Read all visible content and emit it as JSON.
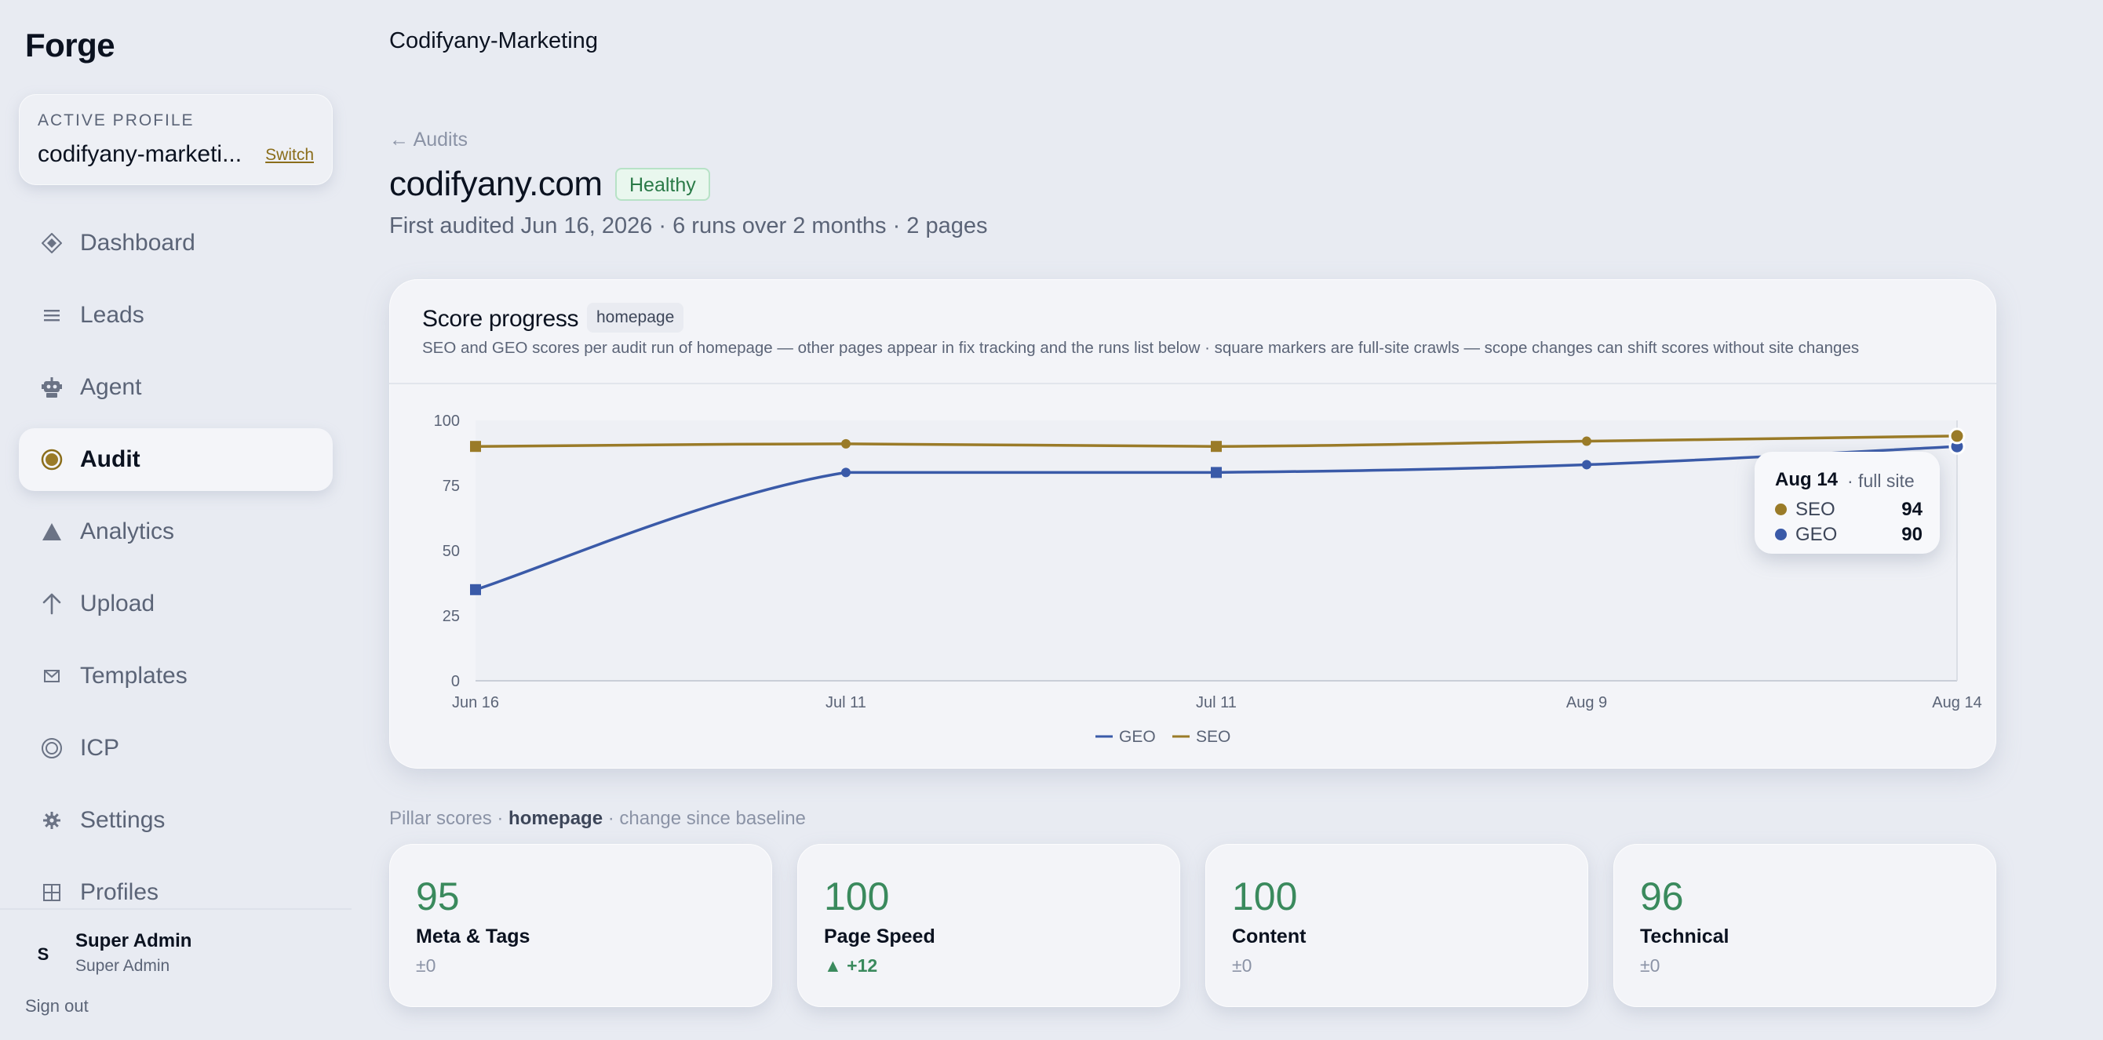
{
  "sidebar": {
    "brand": "Forge",
    "profile": {
      "label": "ACTIVE PROFILE",
      "name": "codifyany-marketi...",
      "switch_label": "Switch"
    },
    "items": [
      {
        "label": "Dashboard",
        "icon": "diamond-icon"
      },
      {
        "label": "Leads",
        "icon": "list-icon"
      },
      {
        "label": "Agent",
        "icon": "robot-icon"
      },
      {
        "label": "Audit",
        "icon": "target-icon",
        "active": true
      },
      {
        "label": "Analytics",
        "icon": "triangle-icon"
      },
      {
        "label": "Upload",
        "icon": "arrow-up-icon"
      },
      {
        "label": "Templates",
        "icon": "envelope-icon"
      },
      {
        "label": "ICP",
        "icon": "ring-icon"
      },
      {
        "label": "Settings",
        "icon": "gear-icon"
      },
      {
        "label": "Profiles",
        "icon": "grid-icon"
      }
    ],
    "user": {
      "initial": "S",
      "name": "Super Admin",
      "role": "Super Admin"
    },
    "sign_out": "Sign out"
  },
  "header": {
    "workspace": "Codifyany-Marketing"
  },
  "breadcrumb": {
    "back": "← Audits"
  },
  "site": {
    "domain": "codifyany.com",
    "status": "Healthy",
    "meta": "First audited Jun 16, 2026 · 6 runs over 2 months · 2 pages"
  },
  "score_card": {
    "title": "Score progress",
    "scope": "homepage",
    "subtitle": "SEO and GEO scores per audit run of homepage — other pages appear in fix tracking and the runs list below · square markers are full-site crawls — scope changes can shift scores without site changes",
    "tooltip": {
      "date": "Aug 14",
      "scope": "· full site",
      "rows": [
        {
          "name": "SEO",
          "value": "94"
        },
        {
          "name": "GEO",
          "value": "90"
        }
      ]
    }
  },
  "chart_data": {
    "type": "line",
    "x": [
      "Jun 16",
      "Jul 11",
      "Jul 11",
      "Aug 9",
      "Aug 14"
    ],
    "full_site": [
      true,
      false,
      true,
      false,
      true
    ],
    "series": [
      {
        "name": "GEO",
        "color": "#3a5aa8",
        "values": [
          35,
          80,
          80,
          83,
          90
        ]
      },
      {
        "name": "SEO",
        "color": "#9a7b28",
        "values": [
          90,
          91,
          90,
          92,
          94
        ]
      }
    ],
    "ylim": [
      0,
      100
    ],
    "yticks": [
      0,
      25,
      50,
      75,
      100
    ],
    "legend": "bottom-center",
    "grid": false
  },
  "pillars": {
    "header_prefix": "Pillar scores · ",
    "header_scope": "homepage",
    "header_suffix": " · change since baseline",
    "cards": [
      {
        "score": "95",
        "name": "Meta & Tags",
        "delta": "±0",
        "up": false
      },
      {
        "score": "100",
        "name": "Page Speed",
        "delta": "▲ +12",
        "up": true
      },
      {
        "score": "100",
        "name": "Content",
        "delta": "±0",
        "up": false
      },
      {
        "score": "96",
        "name": "Technical",
        "delta": "±0",
        "up": false
      }
    ]
  }
}
